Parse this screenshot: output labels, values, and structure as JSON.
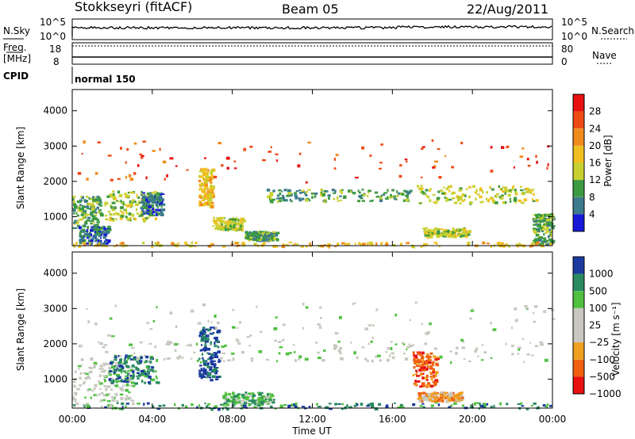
{
  "header": {
    "station": "Stokkseyri (fitACF)",
    "beam": "Beam 05",
    "date": "22/Aug/2011"
  },
  "nsky_panel": {
    "left_label": "N.Sky",
    "right_label": "N.Search",
    "left_ticks": [
      "10^5",
      "10^0"
    ],
    "right_ticks": [
      "10^5",
      "10^0"
    ]
  },
  "freq_panel": {
    "left_label_1": "Freq.",
    "left_label_2": "[MHz]",
    "left_ticks": [
      "18",
      "8"
    ],
    "right_label": "Nave",
    "right_ticks": [
      "80",
      "0"
    ]
  },
  "cpid_panel": {
    "label": "CPID",
    "mode": "normal 150"
  },
  "chart_data": [
    {
      "type": "heatmap",
      "name_printed": "",
      "ylabel": "Slant Range [km]",
      "yticks": [
        "4000",
        "3000",
        "2000",
        "1000"
      ],
      "ylim": [
        180,
        4600
      ],
      "colorbar": {
        "label": "Power [dB]",
        "ticks": [
          "28",
          "24",
          "20",
          "16",
          "12",
          "8",
          "4"
        ],
        "colors": [
          "#e81010",
          "#f04a14",
          "#f08a1c",
          "#f0c020",
          "#c8d030",
          "#3c9a40",
          "#3c7a8c",
          "#1818d8"
        ]
      },
      "blobs": [
        {
          "t0": 0.0,
          "t1": 1.4,
          "r0": 700,
          "r1": 1600,
          "level": 5
        },
        {
          "t0": 0.3,
          "t1": 1.8,
          "r0": 250,
          "r1": 750,
          "level": 6
        },
        {
          "t0": 1.6,
          "t1": 4.2,
          "r0": 900,
          "r1": 1750,
          "level": 4
        },
        {
          "t0": 3.4,
          "t1": 4.5,
          "r0": 1100,
          "r1": 1700,
          "level": 6
        },
        {
          "t0": 6.3,
          "t1": 7.0,
          "r0": 1300,
          "r1": 2400,
          "level": 3
        },
        {
          "t0": 7.0,
          "t1": 8.5,
          "r0": 650,
          "r1": 1000,
          "level": 4
        },
        {
          "t0": 8.6,
          "t1": 10.2,
          "r0": 350,
          "r1": 600,
          "level": 5
        },
        {
          "t0": 9.5,
          "t1": 17.0,
          "r0": 1450,
          "r1": 1800,
          "level": 5
        },
        {
          "t0": 17.2,
          "t1": 23.2,
          "r0": 1400,
          "r1": 1900,
          "level": 4
        },
        {
          "t0": 17.5,
          "t1": 19.8,
          "r0": 450,
          "r1": 700,
          "level": 4
        },
        {
          "t0": 23.0,
          "t1": 24.0,
          "r0": 250,
          "r1": 1100,
          "level": 5
        },
        {
          "t0": 0.0,
          "t1": 24.0,
          "r0": 2000,
          "r1": 3200,
          "level": 1
        },
        {
          "t0": 0.0,
          "t1": 24.0,
          "r0": 180,
          "r1": 300,
          "level": 3
        }
      ]
    },
    {
      "type": "heatmap",
      "name_printed": "",
      "ylabel": "Slant Range [km]",
      "xlabel": "Time UT",
      "xticks": [
        "00:00",
        "04:00",
        "08:00",
        "12:00",
        "16:00",
        "20:00",
        "00:00"
      ],
      "yticks": [
        "4000",
        "3000",
        "2000",
        "1000"
      ],
      "ylim": [
        180,
        4600
      ],
      "colorbar": {
        "label": "Velocity [m s⁻¹]",
        "ticks": [
          "1000",
          "500",
          "100",
          "25",
          "−25",
          "−100",
          "−500",
          "−1000"
        ],
        "colors": [
          "#1a3aa0",
          "#2a8a60",
          "#50c040",
          "#c8c8c0",
          "#c8c8c0",
          "#f0a020",
          "#f06010",
          "#e81010"
        ]
      },
      "blobs": [
        {
          "t0": 0.0,
          "t1": 24.0,
          "r0": 1500,
          "r1": 2100,
          "level": 3
        },
        {
          "t0": 0.0,
          "t1": 3.0,
          "r0": 250,
          "r1": 1500,
          "level": 3
        },
        {
          "t0": 1.8,
          "t1": 4.2,
          "r0": 900,
          "r1": 1700,
          "level": 1
        },
        {
          "t0": 6.3,
          "t1": 7.3,
          "r0": 1000,
          "r1": 2500,
          "level": 0
        },
        {
          "t0": 7.5,
          "t1": 10.0,
          "r0": 300,
          "r1": 650,
          "level": 2
        },
        {
          "t0": 17.0,
          "t1": 18.2,
          "r0": 800,
          "r1": 1800,
          "level": 6
        },
        {
          "t0": 17.2,
          "t1": 19.5,
          "r0": 400,
          "r1": 650,
          "level": 5
        },
        {
          "t0": 0.0,
          "t1": 24.0,
          "r0": 180,
          "r1": 350,
          "level": 1
        },
        {
          "t0": 0.0,
          "t1": 24.0,
          "r0": 2000,
          "r1": 3200,
          "level": 3
        }
      ]
    }
  ]
}
